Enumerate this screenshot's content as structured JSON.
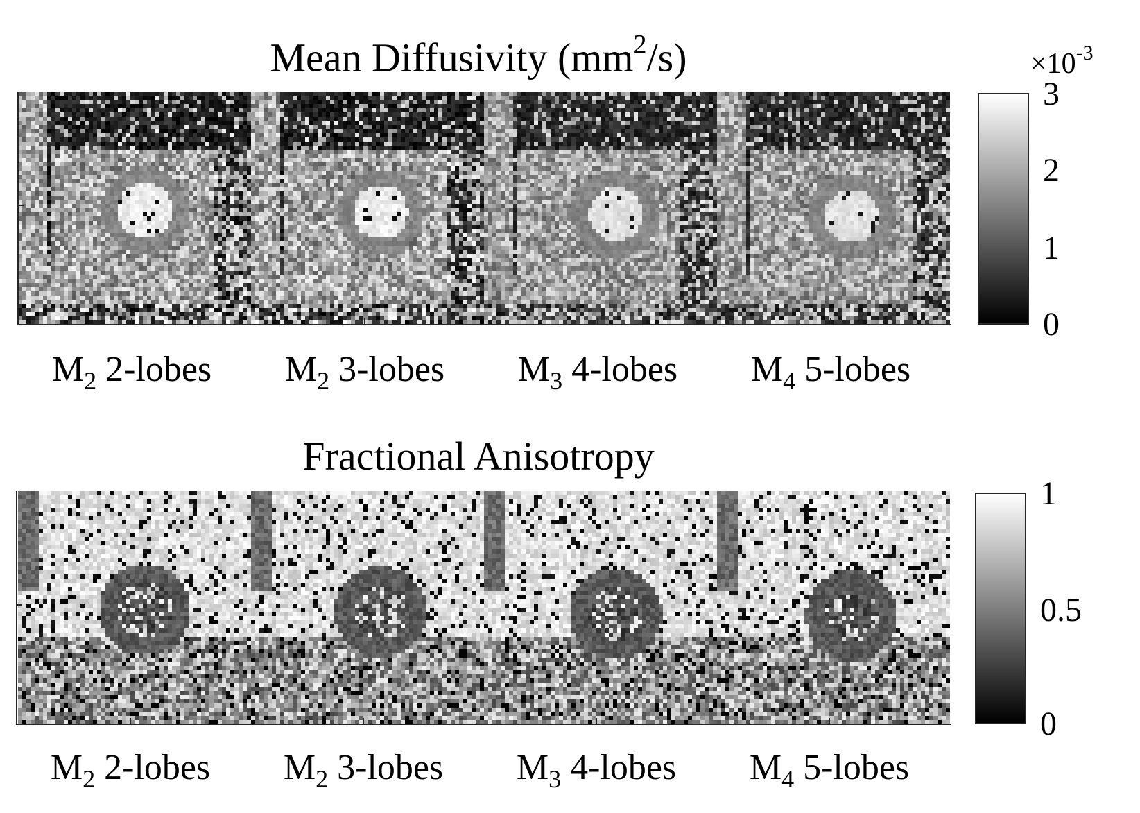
{
  "panels": [
    {
      "title_main": "Mean Diffusivity (mm",
      "title_sup": "2",
      "title_tail": "/s)",
      "labels": [
        {
          "m": "M",
          "sub": "2",
          "text": " 2-lobes"
        },
        {
          "m": "M",
          "sub": "2",
          "text": " 3-lobes"
        },
        {
          "m": "M",
          "sub": "3",
          "text": " 4-lobes"
        },
        {
          "m": "M",
          "sub": "4",
          "text": " 5-lobes"
        }
      ],
      "colorbar": {
        "multiplier_prefix": "×10",
        "multiplier_exp": "-3",
        "ticks": [
          "3",
          "2",
          "1",
          "0"
        ],
        "min": 0,
        "max": 3
      },
      "map_type": "md"
    },
    {
      "title_main": "Fractional Anisotropy",
      "title_sup": "",
      "title_tail": "",
      "labels": [
        {
          "m": "M",
          "sub": "2",
          "text": " 2-lobes"
        },
        {
          "m": "M",
          "sub": "2",
          "text": " 3-lobes"
        },
        {
          "m": "M",
          "sub": "3",
          "text": " 4-lobes"
        },
        {
          "m": "M",
          "sub": "4",
          "text": " 5-lobes"
        }
      ],
      "colorbar": {
        "ticks": [
          "1",
          "0.5",
          "0"
        ],
        "min": 0,
        "max": 1
      },
      "map_type": "fa"
    }
  ],
  "colormap": "gray"
}
